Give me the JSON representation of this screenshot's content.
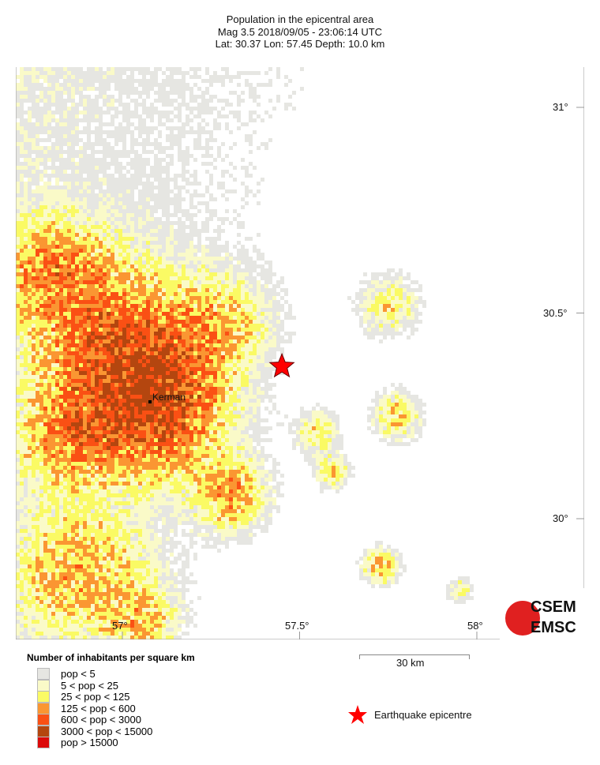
{
  "header": {
    "title": "Population in the epicentral area",
    "line2": "Mag 3.5  2018/09/05 - 23:06:14 UTC",
    "line3": "Lat: 30.37    Lon: 57.45    Depth:  10.0 km"
  },
  "map": {
    "lat_labels": [
      "31°",
      "30.5°",
      "30°"
    ],
    "lon_labels": [
      "57°",
      "57.5°",
      "58°"
    ],
    "city": {
      "name": "Kerman",
      "lat": 30.29,
      "lon": 57.07
    },
    "epicentre": {
      "lat": 30.37,
      "lon": 57.45,
      "color": "#ff0000"
    },
    "scale_label": "30 km",
    "logo": {
      "top": "CSEM",
      "bottom": "EMSC",
      "color": "#e02020"
    }
  },
  "legend": {
    "title": "Number of inhabitants per square km",
    "items": [
      {
        "label": "pop < 5",
        "color": "#e6e6e2"
      },
      {
        "label": "5 < pop < 25",
        "color": "#fafac8"
      },
      {
        "label": "25 < pop < 125",
        "color": "#fafa64"
      },
      {
        "label": "125 < pop < 600",
        "color": "#fa9632"
      },
      {
        "label": "600 < pop < 3000",
        "color": "#fa5014"
      },
      {
        "label": "3000 < pop < 15000",
        "color": "#b4460f"
      },
      {
        "label": "pop > 15000",
        "color": "#dc0a0a"
      }
    ],
    "epicentre_label": "Earthquake epicentre"
  }
}
